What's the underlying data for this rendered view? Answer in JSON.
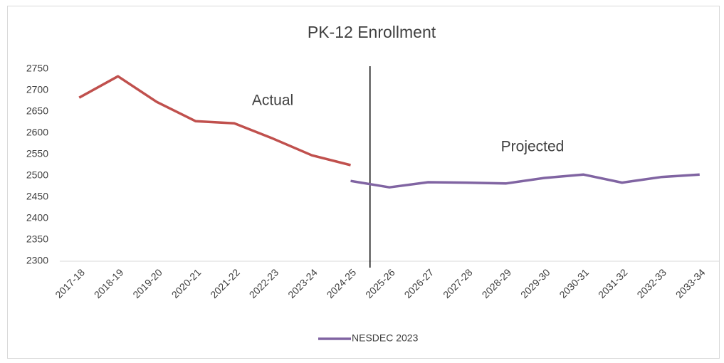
{
  "chart_data": {
    "type": "line",
    "title": "PK-12 Enrollment",
    "categories": [
      "2017-18",
      "2018-19",
      "2019-20",
      "2020-21",
      "2021-22",
      "2022-23",
      "2023-24",
      "2024-25",
      "2025-26",
      "2026-27",
      "2027-28",
      "2028-29",
      "2029-30",
      "2030-31",
      "2031-32",
      "2032-33",
      "2033-34"
    ],
    "series": [
      {
        "color": "#c0504d",
        "values": [
          2683,
          2733,
          2673,
          2628,
          2623,
          2587,
          2548,
          2525,
          null,
          null,
          null,
          null,
          null,
          null,
          null,
          null,
          null
        ]
      },
      {
        "name": "NESDEC 2023",
        "color": "#8064a2",
        "values": [
          null,
          null,
          null,
          null,
          null,
          null,
          null,
          2488,
          2473,
          2485,
          2484,
          2482,
          2495,
          2503,
          2484,
          2497,
          2503
        ]
      }
    ],
    "annotations": [
      "Actual",
      "Projected"
    ],
    "ylim": [
      2300,
      2750
    ],
    "yticks": [
      2300,
      2350,
      2400,
      2450,
      2500,
      2550,
      2600,
      2650,
      2700,
      2750
    ],
    "grid": false
  }
}
